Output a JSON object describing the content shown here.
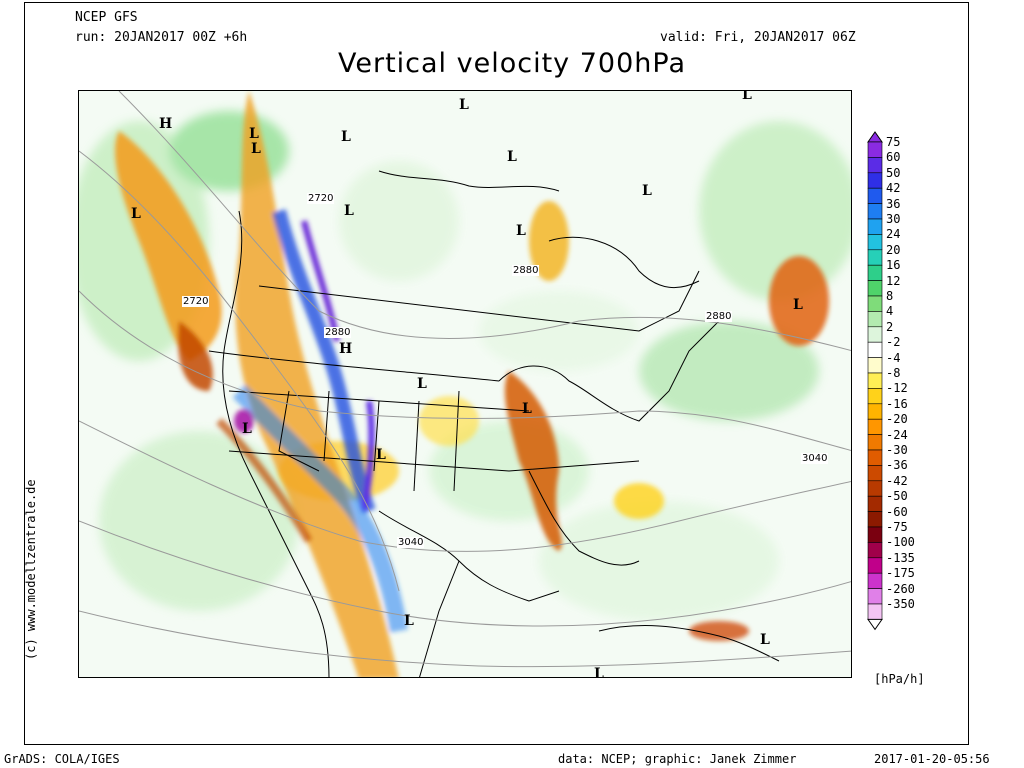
{
  "header": {
    "model": "NCEP GFS",
    "run": "run: 20JAN2017 00Z +6h",
    "valid": "valid: Fri, 20JAN2017 06Z",
    "title": "Vertical velocity 700hPa"
  },
  "credit": "(c) www.modellzentrale.de",
  "legend": {
    "units": "[hPa/h]",
    "levels": [
      "75",
      "60",
      "50",
      "42",
      "36",
      "30",
      "24",
      "20",
      "16",
      "12",
      "8",
      "4",
      "2",
      "-2",
      "-4",
      "-8",
      "-12",
      "-16",
      "-20",
      "-24",
      "-30",
      "-36",
      "-42",
      "-50",
      "-60",
      "-75",
      "-100",
      "-135",
      "-175",
      "-260",
      "-350"
    ],
    "colors": [
      "#8a2be2",
      "#5b2ce6",
      "#2f2fe6",
      "#1f5aee",
      "#1e7ef2",
      "#1fa2f0",
      "#22c2e0",
      "#26d0b8",
      "#2ecf8a",
      "#4fd36a",
      "#7fdc7a",
      "#b3ebb0",
      "#ddf5dc",
      "#ffffff",
      "#fffccc",
      "#ffee55",
      "#ffd21a",
      "#ffb400",
      "#ff9600",
      "#f07a00",
      "#e05c00",
      "#cc4a00",
      "#b83a00",
      "#a32a00",
      "#8c1a00",
      "#7a0010",
      "#a0004a",
      "#c0008a",
      "#cc33cc",
      "#e080e8",
      "#f4c4f4"
    ]
  },
  "map_labels": {
    "highs": [
      "H",
      "H"
    ],
    "lows": [
      "L",
      "L",
      "L",
      "L",
      "L",
      "L",
      "L",
      "L",
      "L",
      "L",
      "L",
      "L",
      "L",
      "L",
      "L",
      "L",
      "L",
      "L"
    ],
    "contours": [
      "2720",
      "2720",
      "2880",
      "2880",
      "2880",
      "3040",
      "3040"
    ]
  },
  "footer": {
    "left": "GrADS: COLA/IGES",
    "center": "data: NCEP; graphic: Janek Zimmer",
    "right": "2017-01-20-05:56"
  }
}
